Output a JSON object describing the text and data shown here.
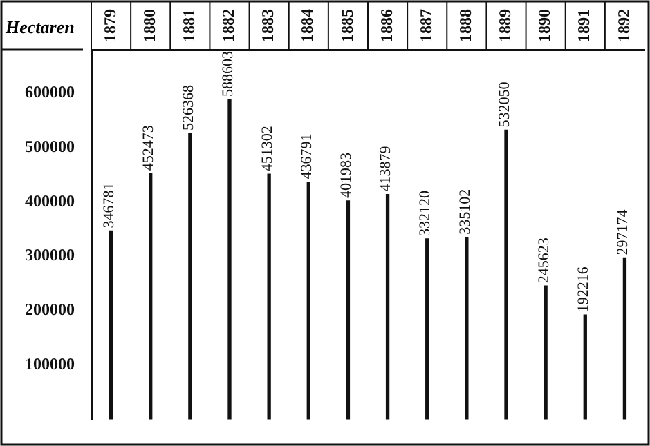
{
  "chart_data": {
    "type": "bar",
    "ylabel": "Hectaren",
    "categories": [
      "1879",
      "1880",
      "1881",
      "1882",
      "1883",
      "1884",
      "1885",
      "1886",
      "1887",
      "1888",
      "1889",
      "1890",
      "1891",
      "1892"
    ],
    "values": [
      346781,
      452473,
      526368,
      588603,
      451302,
      436791,
      401983,
      413879,
      332120,
      335102,
      532050,
      245623,
      192216,
      297174
    ],
    "color": "#111111",
    "ylim": [
      0,
      680000
    ],
    "yticks": [
      100000,
      200000,
      300000,
      400000,
      500000,
      600000
    ],
    "grid": false,
    "legend": false,
    "data_labels": true
  }
}
